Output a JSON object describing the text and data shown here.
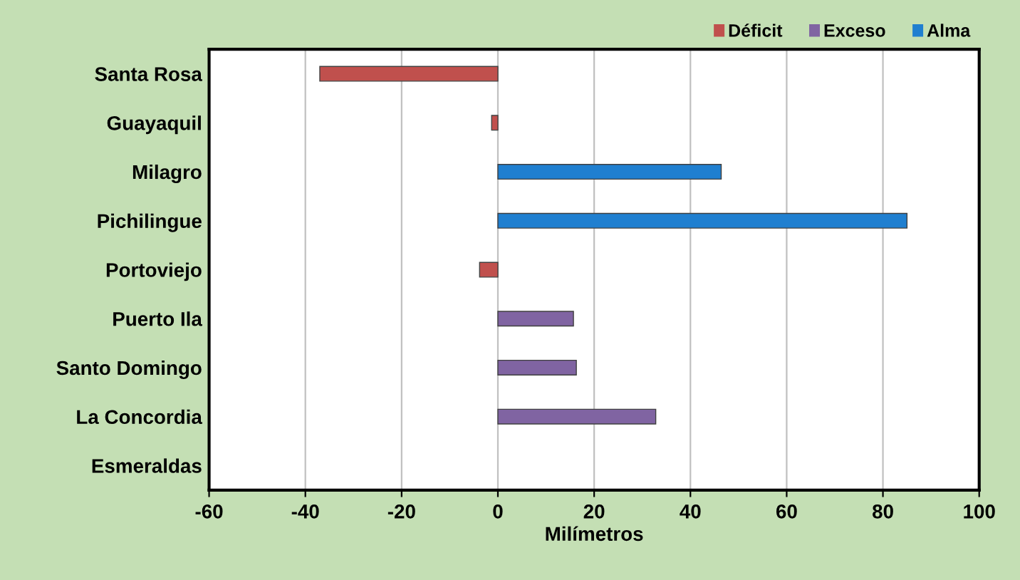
{
  "chart_data": {
    "type": "bar",
    "orientation": "horizontal",
    "stacked": true,
    "xlabel": "Milímetros",
    "categories": [
      "Santa Rosa",
      "Guayaquil",
      "Milagro",
      "Pichilingue",
      "Portoviejo",
      "Puerto Ila",
      "Santo Domingo",
      "La Concordia",
      "Esmeraldas"
    ],
    "series": [
      {
        "name": "Déficit",
        "color": "#c0504d",
        "values": [
          -37,
          -1.3,
          null,
          null,
          -3.8,
          null,
          null,
          null,
          null
        ]
      },
      {
        "name": "Exceso",
        "color": "#8064a2",
        "values": [
          null,
          null,
          null,
          null,
          null,
          15.7,
          16.3,
          32.8,
          null
        ]
      },
      {
        "name": "Alma",
        "color": "#1f7fd0",
        "values": [
          null,
          null,
          46.4,
          85,
          null,
          null,
          null,
          null,
          null
        ]
      }
    ],
    "xlim": [
      -60,
      100
    ],
    "xticks": [
      -60,
      -40,
      -20,
      0,
      20,
      40,
      60,
      80,
      100
    ],
    "grid": "x",
    "legend": "top right"
  }
}
